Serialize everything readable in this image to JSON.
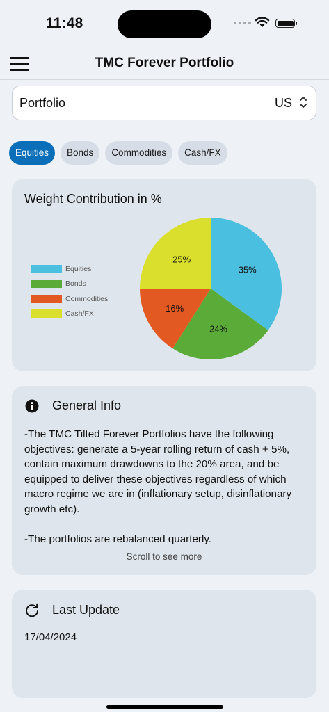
{
  "status_bar": {
    "time": "11:48"
  },
  "header": {
    "title": "TMC Forever Portfolio"
  },
  "portfolio_select": {
    "label": "Portfolio",
    "value": "US"
  },
  "chips": [
    {
      "label": "Equities",
      "active": true
    },
    {
      "label": "Bonds",
      "active": false
    },
    {
      "label": "Commodities",
      "active": false
    },
    {
      "label": "Cash/FX",
      "active": false
    }
  ],
  "chart_card": {
    "title": "Weight Contribution in %"
  },
  "chart_data": {
    "type": "pie",
    "title": "Weight Contribution in %",
    "legend_position": "left",
    "slices": [
      {
        "label": "Equities",
        "value": 35,
        "display": "35%",
        "color": "#4bbfe0"
      },
      {
        "label": "Bonds",
        "value": 24,
        "display": "24%",
        "color": "#5aab38"
      },
      {
        "label": "Commodities",
        "value": 16,
        "display": "16%",
        "color": "#e25a22"
      },
      {
        "label": "Cash/FX",
        "value": 25,
        "display": "25%",
        "color": "#dadf2d"
      }
    ]
  },
  "general_info": {
    "title": "General Info",
    "paragraphs": [
      "-The TMC Tilted Forever Portfolios have the following objectives: generate a 5-year rolling return of cash + 5%, contain maximum drawdowns to the 20% area, and be equipped to deliver these objectives regardless of which macro regime we are in (inflationary setup, disinflationary growth etc).",
      "-The portfolios are rebalanced quarterly."
    ],
    "scroll_hint": "Scroll to see more"
  },
  "last_update": {
    "title": "Last Update",
    "date": "17/04/2024"
  },
  "icons": {
    "menu": "hamburger-menu-icon",
    "select": "chevron-up-down-icon",
    "info": "info-circle-icon",
    "refresh": "refresh-icon",
    "wifi": "wifi-icon",
    "battery": "battery-icon"
  }
}
